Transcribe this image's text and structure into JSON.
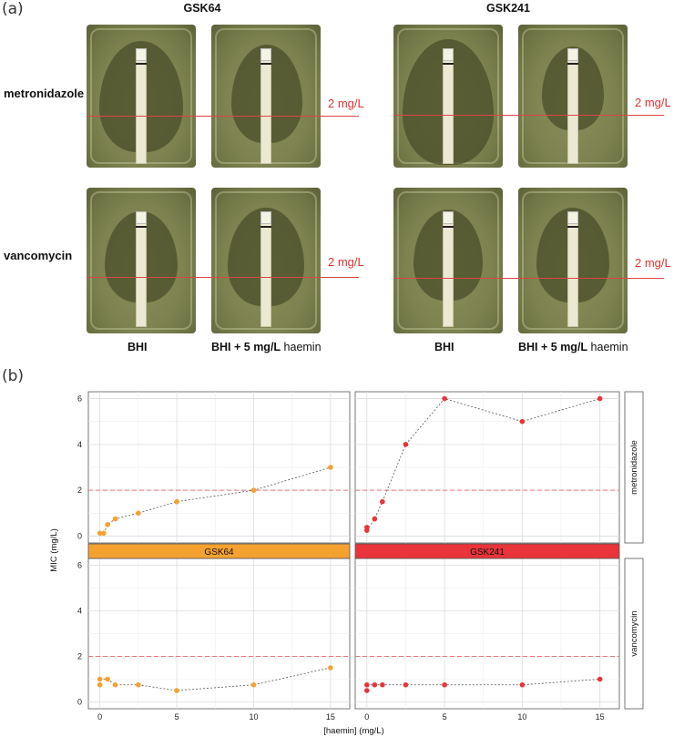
{
  "panel_a": {
    "label": "(a)",
    "strains": [
      "GSK64",
      "GSK241"
    ],
    "rows": [
      "metronidazole",
      "vancomycin"
    ],
    "mic_label": "2 mg/L",
    "columns": [
      {
        "main": "BHI",
        "extra": ""
      },
      {
        "main": "BHI + 5 mg/L",
        "extra": " haemin"
      }
    ]
  },
  "panel_b": {
    "label": "(b)"
  },
  "chart_data": {
    "type": "scatter",
    "xlabel": "[haemin] (mg/L)",
    "ylabel": "MIC (mg/L)",
    "xlim": [
      -0.75,
      16.25
    ],
    "ylim": [
      -0.3,
      6.3
    ],
    "x_ticks": [
      0,
      5,
      10,
      15
    ],
    "y_ticks": [
      0,
      2,
      4,
      6
    ],
    "grid": true,
    "reference_line": 2,
    "facet_columns": [
      "GSK64",
      "GSK241"
    ],
    "facet_rows": [
      "metronidazole",
      "vancomycin"
    ],
    "colors": {
      "GSK64": "#f5a130",
      "GSK241": "#e8343a",
      "reference": "#e07878",
      "strip_GSK64": "#f5a130",
      "strip_GSK241": "#e8343a"
    },
    "panels": [
      {
        "strain": "GSK64",
        "drug": "metronidazole",
        "x": [
          0,
          0.25,
          0.5,
          1,
          2.5,
          5,
          10,
          15
        ],
        "y": [
          0.125,
          0.125,
          0.5,
          0.75,
          1,
          1.5,
          2,
          3
        ],
        "line_x": [
          0,
          0.25,
          0.5,
          1,
          2.5,
          5,
          10,
          15
        ],
        "line_y": [
          0.125,
          0.125,
          0.5,
          0.75,
          1,
          1.5,
          2,
          3
        ]
      },
      {
        "strain": "GSK241",
        "drug": "metronidazole",
        "x": [
          0,
          0,
          0.5,
          1,
          2.5,
          5,
          10,
          15
        ],
        "y": [
          0.25,
          0.38,
          0.75,
          1.5,
          4,
          6,
          5,
          6
        ],
        "line_x": [
          0,
          0.5,
          1,
          2.5,
          5,
          10,
          15
        ],
        "line_y": [
          0.25,
          0.75,
          1.5,
          4,
          6,
          5,
          6
        ]
      },
      {
        "strain": "GSK64",
        "drug": "vancomycin",
        "x": [
          0,
          0,
          0.5,
          1,
          2.5,
          5,
          10,
          15
        ],
        "y": [
          0.75,
          1,
          1,
          0.75,
          0.75,
          0.5,
          0.75,
          1.5
        ],
        "line_x": [
          0,
          0.5,
          1,
          2.5,
          5,
          10,
          15
        ],
        "line_y": [
          1,
          1,
          0.75,
          0.75,
          0.5,
          0.75,
          1.5
        ]
      },
      {
        "strain": "GSK241",
        "drug": "vancomycin",
        "x": [
          0,
          0,
          0.5,
          1,
          2.5,
          5,
          10,
          15
        ],
        "y": [
          0.5,
          0.75,
          0.75,
          0.75,
          0.75,
          0.75,
          0.75,
          1
        ],
        "line_x": [
          0,
          0.5,
          1,
          2.5,
          5,
          10,
          15
        ],
        "line_y": [
          0.75,
          0.75,
          0.75,
          0.75,
          0.75,
          0.75,
          1
        ]
      }
    ]
  }
}
